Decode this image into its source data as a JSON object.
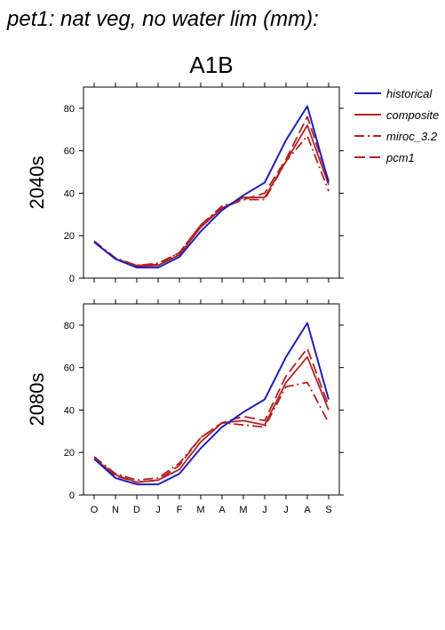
{
  "title": "pet1: nat veg, no water lim (mm):",
  "scenario": "A1B",
  "chart_data": {
    "type": "line",
    "categories": [
      "O",
      "N",
      "D",
      "J",
      "F",
      "M",
      "A",
      "M",
      "J",
      "J",
      "A",
      "S"
    ],
    "ylim": [
      0,
      90
    ],
    "yticks": [
      0,
      20,
      40,
      60,
      80
    ],
    "legend": {
      "placement": "right",
      "entries": [
        "historical",
        "composite",
        "miroc_3.2",
        "pcm1"
      ]
    },
    "colors": {
      "historical": "#1f1fbf",
      "composite": "#b22222",
      "miroc_3.2": "#b22222",
      "pcm1": "#b22222"
    },
    "panels": [
      {
        "label": "2040s",
        "series": [
          {
            "name": "historical",
            "style": "solid",
            "values": [
              17,
              9,
              5,
              5,
              10,
              22,
              32,
              39,
              45,
              65,
              81,
              45
            ]
          },
          {
            "name": "composite",
            "style": "solid",
            "values": [
              17,
              9,
              5.5,
              6,
              11,
              24,
              33,
              38,
              38,
              55,
              72,
              44
            ]
          },
          {
            "name": "miroc_3.2",
            "style": "dashdot",
            "values": [
              17.5,
              9.5,
              6,
              7,
              12,
              25,
              34,
              37,
              37,
              55,
              67,
              41
            ]
          },
          {
            "name": "pcm1",
            "style": "dashed",
            "values": [
              17,
              9,
              6,
              6.5,
              12,
              25,
              33,
              37,
              40,
              56,
              76,
              46
            ]
          }
        ]
      },
      {
        "label": "2080s",
        "series": [
          {
            "name": "historical",
            "style": "solid",
            "values": [
              17,
              8,
              5,
              5,
              10,
              22,
              32,
              39,
              45,
              65,
              81,
              45
            ]
          },
          {
            "name": "composite",
            "style": "solid",
            "values": [
              17,
              9.5,
              6,
              7,
              12,
              25,
              34,
              35,
              33,
              53,
              65,
              40
            ]
          },
          {
            "name": "miroc_3.2",
            "style": "dashdot",
            "values": [
              18,
              10,
              7,
              8,
              15,
              27,
              34,
              33,
              32,
              51,
              53,
              34
            ]
          },
          {
            "name": "pcm1",
            "style": "dashed",
            "values": [
              17,
              9,
              6,
              7,
              14,
              27,
              34,
              37,
              35,
              56,
              69,
              42
            ]
          }
        ]
      }
    ]
  }
}
